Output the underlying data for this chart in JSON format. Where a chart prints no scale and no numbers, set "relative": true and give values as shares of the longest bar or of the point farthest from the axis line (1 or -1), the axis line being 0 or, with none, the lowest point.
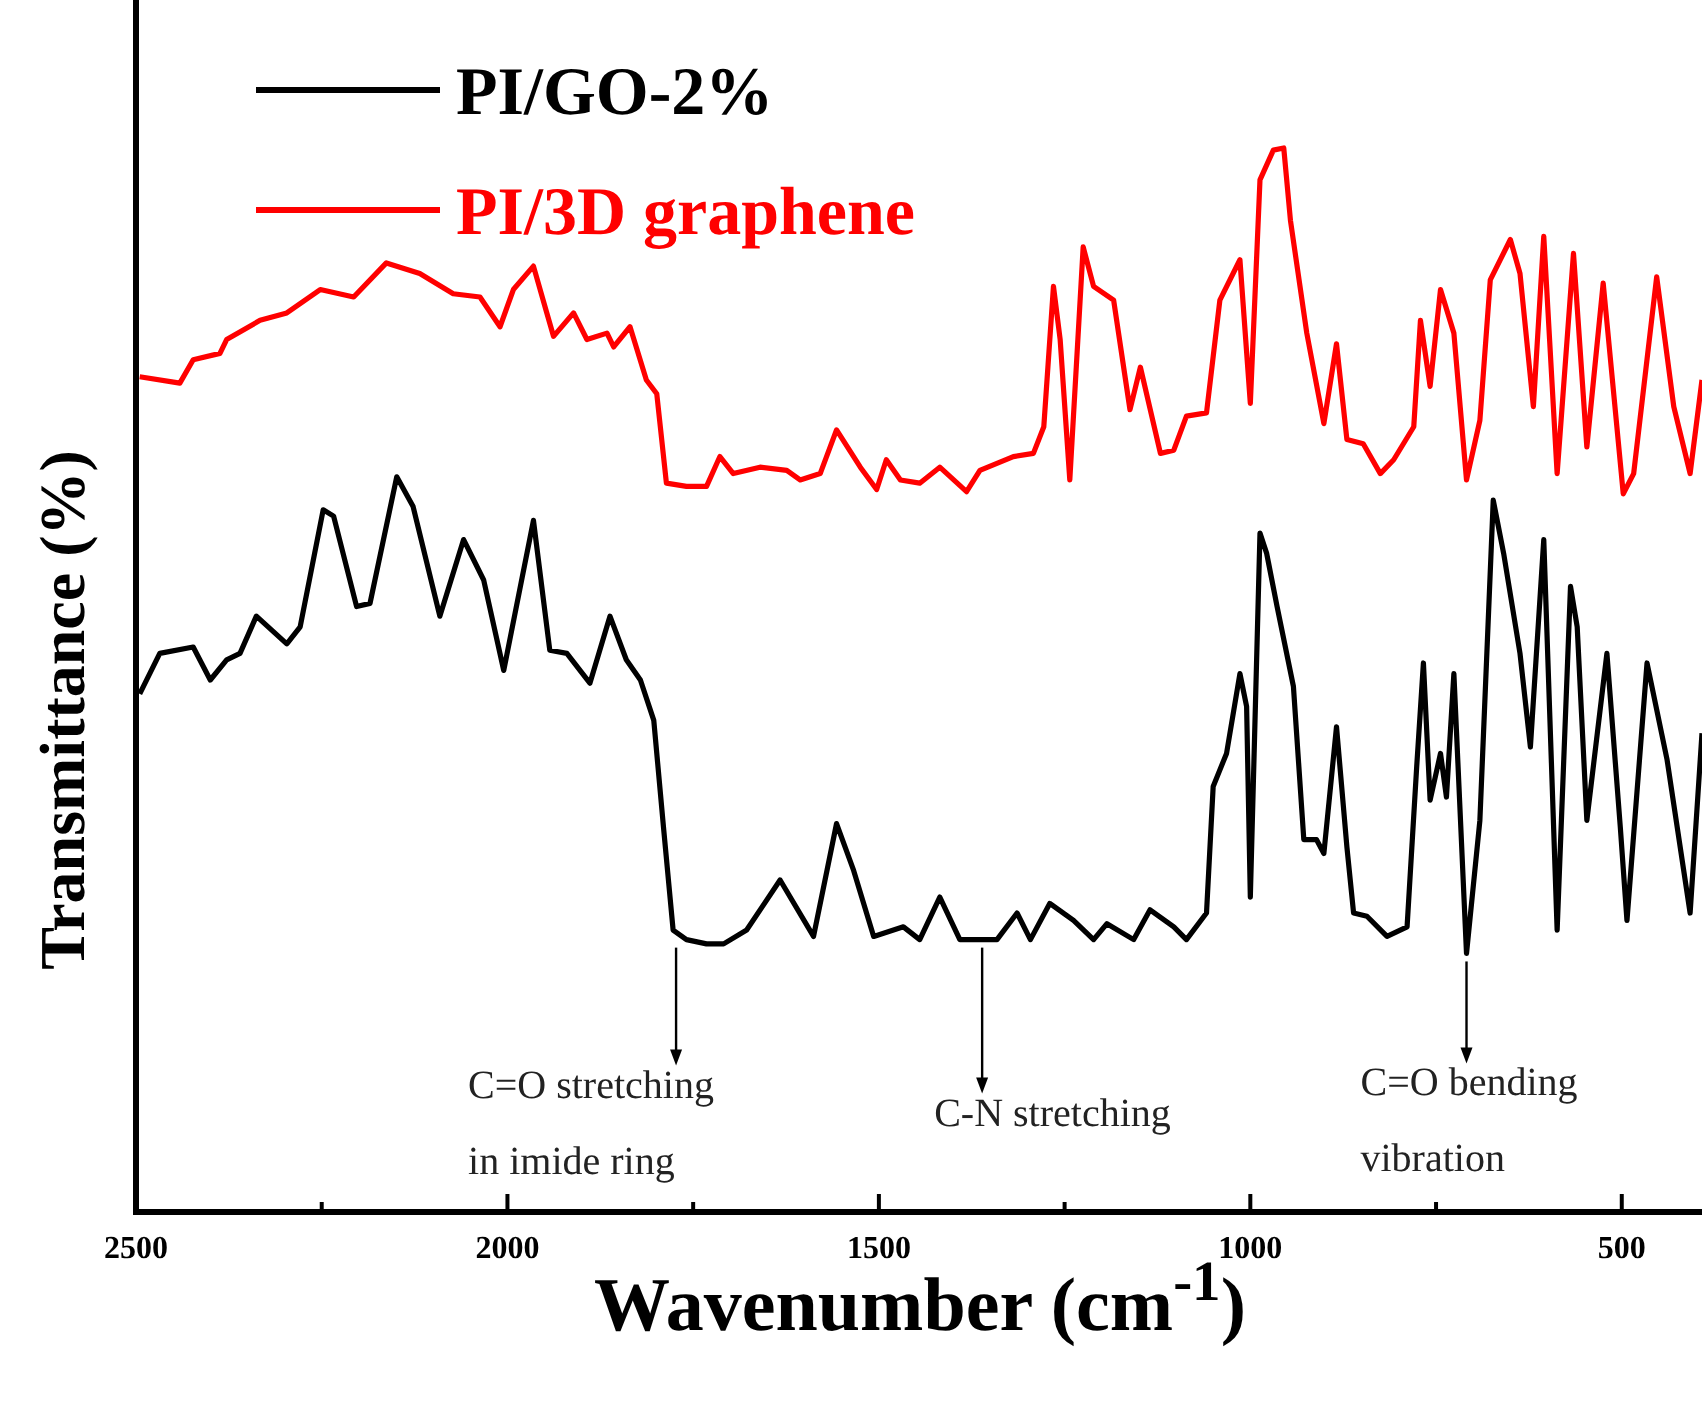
{
  "chart_data": {
    "type": "line",
    "relative": true,
    "xlabel": "Wavenumber (cm$^{-1}$)",
    "ylabel": "Transmittance (%)",
    "xlim": [
      2500,
      392
    ],
    "xticks": [
      2500,
      {
        "value": 2250,
        "label": null
      },
      2000,
      {
        "value": 1750,
        "label": null
      },
      1500,
      {
        "value": 1250,
        "label": null
      },
      1000,
      {
        "value": 750,
        "label": null
      },
      500
    ],
    "legend": "top left",
    "marker": "none",
    "line_style": "solid",
    "grid": false,
    "annotations": [
      {
        "text": "C=O stretching\nin imide ring",
        "x": 1773,
        "y": 0.256
      },
      {
        "text": "C-N stretching",
        "x": 1361,
        "y": 0.256
      },
      {
        "text": "C=O bending\nvibration",
        "x": 709,
        "y": 0.243
      }
    ],
    "series": [
      {
        "name": "PI/GO-2%",
        "color": "#000000",
        "x": [
          2495,
          2468,
          2423,
          2400,
          2378,
          2360,
          2338,
          2297,
          2279,
          2248,
          2234,
          2203,
          2185,
          2149,
          2127,
          2091,
          2059,
          2032,
          2005,
          1965,
          1943,
          1920,
          1889,
          1862,
          1840,
          1821,
          1803,
          1790,
          1777,
          1759,
          1732,
          1709,
          1678,
          1633,
          1588,
          1557,
          1534,
          1507,
          1467,
          1445,
          1418,
          1391,
          1341,
          1314,
          1296,
          1270,
          1238,
          1211,
          1193,
          1157,
          1135,
          1103,
          1086,
          1059,
          1050,
          1032,
          1014,
          1005,
          1000,
          987,
          978,
          964,
          942,
          928,
          911,
          901,
          884,
          870,
          861,
          843,
          816,
          789,
          776,
          767,
          758,
          744,
          736,
          726,
          709,
          691,
          673,
          659,
          637,
          623,
          605,
          587,
          569,
          560,
          547,
          520,
          502,
          493,
          466,
          439,
          408,
          392
        ],
        "values": [
          0.487,
          0.525,
          0.531,
          0.5,
          0.519,
          0.525,
          0.56,
          0.534,
          0.55,
          0.66,
          0.654,
          0.569,
          0.572,
          0.691,
          0.663,
          0.56,
          0.632,
          0.594,
          0.509,
          0.65,
          0.528,
          0.525,
          0.497,
          0.56,
          0.519,
          0.5,
          0.462,
          0.362,
          0.265,
          0.256,
          0.252,
          0.252,
          0.265,
          0.312,
          0.259,
          0.365,
          0.321,
          0.259,
          0.268,
          0.256,
          0.296,
          0.256,
          0.256,
          0.281,
          0.256,
          0.29,
          0.274,
          0.256,
          0.271,
          0.256,
          0.284,
          0.268,
          0.256,
          0.281,
          0.4,
          0.431,
          0.506,
          0.475,
          0.296,
          0.638,
          0.619,
          0.569,
          0.494,
          0.35,
          0.35,
          0.337,
          0.456,
          0.343,
          0.281,
          0.278,
          0.259,
          0.268,
          0.419,
          0.516,
          0.387,
          0.431,
          0.39,
          0.506,
          0.243,
          0.368,
          0.669,
          0.619,
          0.525,
          0.437,
          0.632,
          0.265,
          0.588,
          0.55,
          0.368,
          0.525,
          0.362,
          0.274,
          0.516,
          0.425,
          0.281,
          0.45
        ]
      },
      {
        "name": "PI/3D graphene",
        "color": "#ff0000",
        "x": [
          2495,
          2441,
          2423,
          2387,
          2378,
          2333,
          2297,
          2252,
          2207,
          2163,
          2118,
          2073,
          2037,
          2010,
          1992,
          1965,
          1947,
          1938,
          1911,
          1893,
          1866,
          1857,
          1835,
          1813,
          1799,
          1786,
          1759,
          1732,
          1714,
          1696,
          1660,
          1624,
          1606,
          1579,
          1557,
          1525,
          1503,
          1490,
          1471,
          1445,
          1418,
          1382,
          1364,
          1319,
          1292,
          1278,
          1265,
          1256,
          1243,
          1225,
          1211,
          1184,
          1162,
          1148,
          1121,
          1103,
          1086,
          1059,
          1041,
          1014,
          1000,
          987,
          969,
          955,
          946,
          924,
          901,
          884,
          870,
          848,
          825,
          807,
          780,
          771,
          758,
          744,
          726,
          709,
          691,
          677,
          650,
          637,
          619,
          605,
          587,
          565,
          547,
          525,
          498,
          484,
          453,
          430,
          408,
          392
        ],
        "values": [
          0.785,
          0.779,
          0.801,
          0.807,
          0.82,
          0.838,
          0.845,
          0.867,
          0.86,
          0.892,
          0.882,
          0.863,
          0.86,
          0.832,
          0.867,
          0.889,
          0.845,
          0.823,
          0.845,
          0.82,
          0.826,
          0.813,
          0.832,
          0.782,
          0.769,
          0.685,
          0.682,
          0.682,
          0.71,
          0.694,
          0.7,
          0.697,
          0.688,
          0.694,
          0.735,
          0.7,
          0.679,
          0.707,
          0.688,
          0.685,
          0.7,
          0.677,
          0.697,
          0.71,
          0.713,
          0.738,
          0.87,
          0.82,
          0.688,
          0.907,
          0.87,
          0.857,
          0.754,
          0.794,
          0.713,
          0.716,
          0.748,
          0.751,
          0.857,
          0.895,
          0.76,
          0.97,
          0.998,
          1,
          0.932,
          0.826,
          0.741,
          0.816,
          0.726,
          0.722,
          0.694,
          0.707,
          0.738,
          0.838,
          0.776,
          0.867,
          0.826,
          0.688,
          0.744,
          0.876,
          0.914,
          0.882,
          0.757,
          0.917,
          0.694,
          0.901,
          0.719,
          0.873,
          0.675,
          0.694,
          0.879,
          0.757,
          0.694,
          0.782
        ]
      }
    ]
  }
}
